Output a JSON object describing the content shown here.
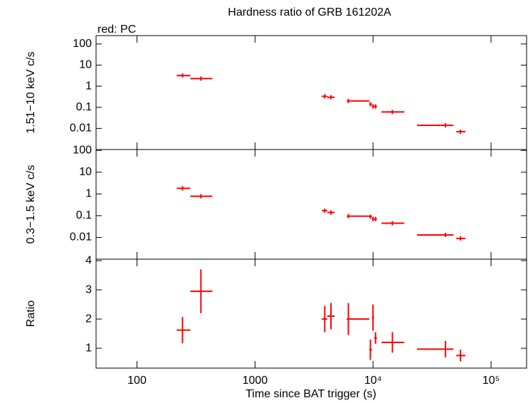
{
  "chart_data": [
    {
      "type": "scatter",
      "title": "Hardness ratio of GRB 161202A",
      "subtitle": "red: PC",
      "y_label": "1.51−10 keV c/s",
      "color": "#ff0000",
      "log_x": true,
      "log_y": true,
      "x": [
        243,
        348,
        3900,
        4400,
        6180,
        9500,
        10000,
        10500,
        14600,
        41100,
        55100
      ],
      "xmin": [
        217,
        283,
        3680,
        4100,
        5990,
        9300,
        9800,
        10200,
        11800,
        23600,
        50700
      ],
      "xmax": [
        283,
        435,
        4100,
        4730,
        9300,
        9800,
        10200,
        10800,
        18400,
        48000,
        60700
      ],
      "values": [
        3.2,
        2.3,
        0.33,
        0.3,
        0.2,
        0.14,
        0.11,
        0.11,
        0.06,
        0.014,
        0.007
      ],
      "xlim": [
        45,
        200000
      ],
      "xticks": [
        100,
        1000,
        10000,
        100000
      ],
      "ylim": [
        0.001,
        250
      ],
      "yticks": [
        0.01,
        0.1,
        1,
        10,
        100
      ]
    },
    {
      "type": "scatter",
      "y_label": "0.3−1.5 keV c/s",
      "color": "#ff0000",
      "log_x": true,
      "log_y": true,
      "x": [
        243,
        348,
        3900,
        4400,
        6180,
        9500,
        10000,
        10500,
        14600,
        41100,
        55100
      ],
      "xmin": [
        217,
        283,
        3680,
        4100,
        5990,
        9300,
        9800,
        10200,
        11800,
        23600,
        50700
      ],
      "xmax": [
        283,
        435,
        4100,
        4730,
        9300,
        9800,
        10200,
        10800,
        18400,
        48000,
        60700
      ],
      "values": [
        1.8,
        0.78,
        0.17,
        0.14,
        0.095,
        0.09,
        0.07,
        0.07,
        0.045,
        0.013,
        0.009
      ],
      "xlim": [
        45,
        200000
      ],
      "xticks": [
        100,
        1000,
        10000,
        100000
      ],
      "ylim": [
        0.001,
        110
      ],
      "yticks": [
        0.01,
        0.1,
        1,
        10,
        100
      ]
    },
    {
      "type": "scatter",
      "y_label": "Ratio",
      "x_label": "Time since BAT trigger (s)",
      "color": "#ff0000",
      "log_x": true,
      "log_y": false,
      "x": [
        243,
        348,
        3900,
        4400,
        6180,
        9500,
        10000,
        10500,
        14600,
        41100,
        55100
      ],
      "xmin": [
        217,
        283,
        3680,
        4100,
        5990,
        9300,
        9800,
        10200,
        11800,
        23600,
        50700
      ],
      "xmax": [
        283,
        435,
        4100,
        4730,
        9300,
        9800,
        10200,
        10800,
        18400,
        48000,
        60700
      ],
      "values": [
        1.62,
        2.95,
        2.0,
        2.1,
        2.0,
        0.95,
        2.05,
        1.35,
        1.2,
        0.97,
        0.75
      ],
      "yerr": [
        0.45,
        0.75,
        0.45,
        0.45,
        0.55,
        0.35,
        0.45,
        0.2,
        0.35,
        0.28,
        0.2
      ],
      "xlim": [
        45,
        200000
      ],
      "xticks": [
        100,
        1000,
        {
          "value": 10000,
          "label": "10⁴"
        },
        {
          "value": 100000,
          "label": "10⁵"
        }
      ],
      "ylim": [
        0.32,
        4.05
      ],
      "yticks": [
        1,
        2,
        3,
        4
      ]
    }
  ]
}
